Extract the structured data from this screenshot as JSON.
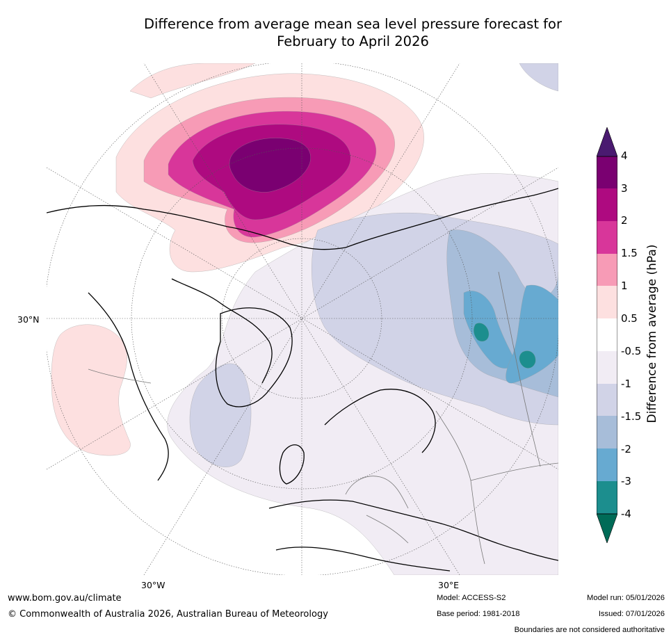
{
  "title": {
    "line1": "Difference from average mean sea level pressure forecast for",
    "line2": "February to April 2026"
  },
  "map": {
    "projection_view": "North polar stereographic (Atlantic sector)",
    "graticule": {
      "lat_label": "30°N",
      "lon_label_west": "30°W",
      "lon_label_east": "30°E"
    },
    "features": [
      {
        "name": "positive-anomaly-north-pacific-arctic",
        "max_category": "3 to 4"
      },
      {
        "name": "positive-anomaly-north-atlantic",
        "max_category": "0.5 to 1"
      },
      {
        "name": "negative-anomaly-siberia",
        "min_category": "-4 to -3"
      },
      {
        "name": "negative-anomaly-greenland-sea",
        "min_category": "-2 to -1.5"
      }
    ]
  },
  "colorbar": {
    "label": "Difference from average (hPa)",
    "ticks": [
      "4",
      "3",
      "2",
      "1.5",
      "1",
      "0.5",
      "-0.5",
      "-1",
      "-1.5",
      "-2",
      "-3",
      "-4"
    ],
    "colors": {
      "over": "#4a1a70",
      "c3_4": "#7a0071",
      "c2_3": "#ae0a80",
      "c15_2": "#d8369a",
      "c1_15": "#f79bb6",
      "c05_1": "#fde0e0",
      "c_neutral": "#ffffff",
      "cm1_m05": "#f1ecf4",
      "cm15_m1": "#d1d3e7",
      "cm2_m15": "#a7bdd9",
      "cm3_m2": "#67aad1",
      "cm4_m3": "#1c8e8e",
      "under": "#006b57"
    }
  },
  "footer": {
    "website": "www.bom.gov.au/climate",
    "copyright": "© Commonwealth of Australia 2026, Australian Bureau of Meteorology",
    "model": "Model: ACCESS-S2",
    "base_period": "Base period: 1981-2018",
    "model_run": "Model run: 05/01/2026",
    "issued": "Issued: 07/01/2026",
    "disclaimer": "Boundaries are not considered authoritative"
  }
}
